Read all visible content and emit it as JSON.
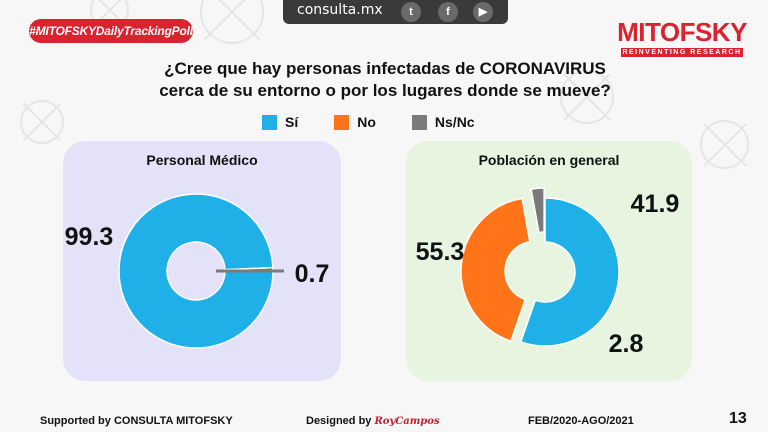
{
  "header": {
    "tag": "#MITOFSKYDailyTrackingPoll",
    "site": "consulta.mx",
    "logo_name": "MITOFSKY",
    "logo_sub": "REINVENTING RESEARCH"
  },
  "question": "¿Cree que hay personas infectadas de CORONAVIRUS cerca de su entorno o por los lugares donde se mueve?",
  "legend": [
    {
      "label": "Sí",
      "color": "#1fb0e8"
    },
    {
      "label": "No",
      "color": "#ff7419"
    },
    {
      "label": "Ns/Nc",
      "color": "#7a7a7a"
    }
  ],
  "chart_data": [
    {
      "type": "pie",
      "title": "Personal Médico",
      "categories": [
        "Sí",
        "No",
        "Ns/Nc"
      ],
      "values": [
        99.3,
        0,
        0.7
      ],
      "labels": [
        "99.3",
        "",
        "0.7"
      ],
      "colors": [
        "#1fb0e8",
        "#ff7419",
        "#7a7a7a"
      ]
    },
    {
      "type": "pie",
      "title": "Población en general",
      "categories": [
        "Sí",
        "No",
        "Ns/Nc"
      ],
      "values": [
        55.3,
        41.9,
        2.8
      ],
      "labels": [
        "55.3",
        "41.9",
        "2.8"
      ],
      "colors": [
        "#1fb0e8",
        "#ff7419",
        "#7a7a7a"
      ]
    }
  ],
  "footer": {
    "supported": "Supported by   CONSULTA   MITOFSKY",
    "designed": "Designed by",
    "designer": "RoyCampos",
    "period": "FEB/2020-AGO/2021",
    "page": "13"
  }
}
